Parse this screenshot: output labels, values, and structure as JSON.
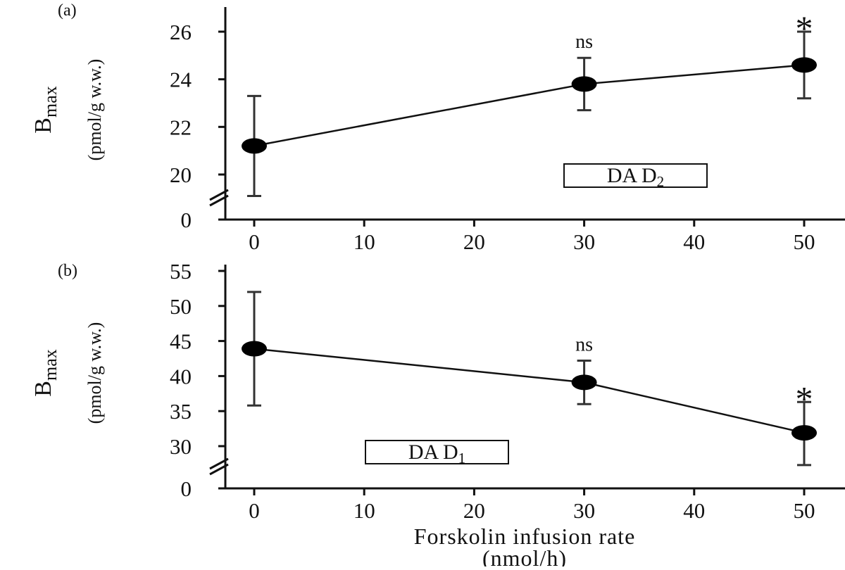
{
  "chart_data": [
    {
      "type": "line",
      "panel_label": "(a)",
      "y_label_main": "B",
      "y_label_sub": "max",
      "y_units": "(pmol/g w.w.)",
      "y_ticks": [
        "0",
        "20",
        "22",
        "24",
        "26"
      ],
      "x_ticks": [
        "0",
        "10",
        "20",
        "30",
        "40",
        "50"
      ],
      "ylim": [
        19,
        27
      ],
      "xlim": [
        -3,
        53
      ],
      "axis_break": true,
      "receptor_label": "DA D",
      "receptor_sub": "2",
      "points": [
        {
          "x": 0,
          "y": 21.2,
          "err_low": 19.1,
          "err_high": 23.3,
          "annotation": ""
        },
        {
          "x": 30,
          "y": 23.8,
          "err_low": 22.7,
          "err_high": 24.9,
          "annotation": "ns"
        },
        {
          "x": 50,
          "y": 24.6,
          "err_low": 23.2,
          "err_high": 26.0,
          "annotation": "*"
        }
      ]
    },
    {
      "type": "line",
      "panel_label": "(b)",
      "y_label_main": "B",
      "y_label_sub": "max",
      "y_units": "(pmol/g w.w.)",
      "y_ticks": [
        "0",
        "30",
        "35",
        "40",
        "45",
        "50",
        "55"
      ],
      "x_ticks": [
        "0",
        "10",
        "20",
        "30",
        "40",
        "50"
      ],
      "ylim": [
        25,
        55
      ],
      "xlim": [
        -3,
        53
      ],
      "axis_break": true,
      "receptor_label": "DA D",
      "receptor_sub": "1",
      "points": [
        {
          "x": 0,
          "y": 43.9,
          "err_low": 35.8,
          "err_high": 52.0,
          "annotation": ""
        },
        {
          "x": 30,
          "y": 39.1,
          "err_low": 36.0,
          "err_high": 42.2,
          "annotation": "ns"
        },
        {
          "x": 50,
          "y": 31.9,
          "err_low": 27.3,
          "err_high": 36.3,
          "annotation": "*"
        }
      ]
    }
  ],
  "x_axis_label_line1": "Forskolin infusion rate",
  "x_axis_label_line2": "(nmol/h)"
}
